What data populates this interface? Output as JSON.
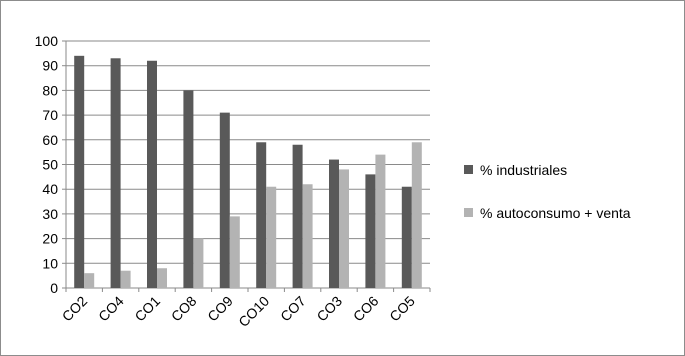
{
  "chart_data": {
    "type": "bar",
    "categories": [
      "CO2",
      "CO4",
      "CO1",
      "CO8",
      "CO9",
      "CO10",
      "CO7",
      "CO3",
      "CO6",
      "CO5"
    ],
    "series": [
      {
        "name": "% industriales",
        "color": "#595959",
        "values": [
          94,
          93,
          92,
          80,
          71,
          59,
          58,
          52,
          46,
          41
        ]
      },
      {
        "name": "% autoconsumo + venta",
        "color": "#b3b3b3",
        "values": [
          6,
          7,
          8,
          20,
          29,
          41,
          42,
          48,
          54,
          59
        ]
      }
    ],
    "ylim": [
      0,
      100
    ],
    "yticks": [
      0,
      10,
      20,
      30,
      40,
      50,
      60,
      70,
      80,
      90,
      100
    ],
    "grid": true,
    "legend_position": "right"
  }
}
